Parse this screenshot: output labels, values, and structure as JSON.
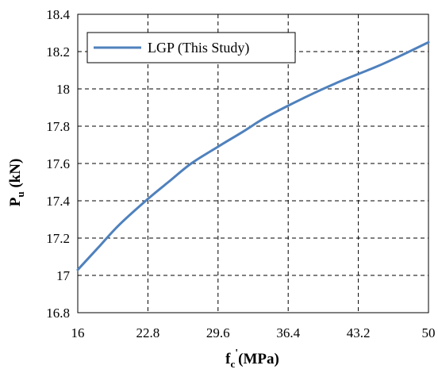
{
  "chart_data": {
    "type": "line",
    "title": "",
    "xlabel": {
      "main": "f",
      "sub": "c",
      "prime": "'",
      "rest": "(MPa)"
    },
    "ylabel": {
      "main": "P",
      "sub": "u",
      "rest": " (kN)"
    },
    "xlim": [
      16,
      50
    ],
    "ylim": [
      16.8,
      18.4
    ],
    "x_ticks": [
      "16",
      "22.8",
      "29.6",
      "36.4",
      "43.2",
      "50"
    ],
    "y_ticks": [
      "16.8",
      "17",
      "17.2",
      "17.4",
      "17.6",
      "17.8",
      "18",
      "18.2",
      "18.4"
    ],
    "grid": true,
    "grid_style": "dashed",
    "legend": {
      "position": "top-left",
      "entries": [
        "LGP (This Study)"
      ]
    },
    "series": [
      {
        "name": "LGP (This Study)",
        "color": "#4f81bd",
        "x": [
          16,
          18,
          20,
          22.8,
          25,
          27,
          29.6,
          32,
          34,
          36.4,
          39,
          41,
          43.2,
          45,
          47,
          50
        ],
        "y": [
          17.03,
          17.15,
          17.27,
          17.41,
          17.51,
          17.6,
          17.69,
          17.77,
          17.84,
          17.91,
          17.98,
          18.03,
          18.08,
          18.12,
          18.17,
          18.25
        ]
      }
    ]
  }
}
